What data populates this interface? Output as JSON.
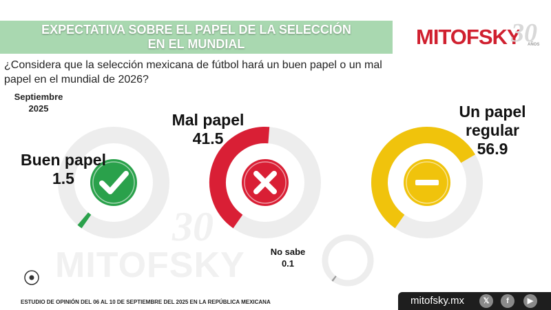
{
  "header": {
    "title_line1": "EXPECTATIVA SOBRE EL PAPEL DE LA SELECCIÓN",
    "title_line2": "EN EL MUNDIAL"
  },
  "logo": {
    "name": "MITOFSKY",
    "anniversary": "30",
    "anniversary_label": "AÑOS"
  },
  "question": "¿Considera que la selección mexicana de fútbol hará un buen papel o un mal papel en el mundial de 2026?",
  "date": {
    "month": "Septiembre",
    "year": "2025"
  },
  "chart_data": {
    "type": "pie",
    "categories": [
      "Buen papel",
      "Mal papel",
      "Un papel regular",
      "No sabe"
    ],
    "values": [
      1.5,
      41.5,
      56.9,
      0.1
    ],
    "value_labels": [
      "1.5",
      "41.5",
      "56.9",
      "0.1"
    ],
    "colors": {
      "buen": "#2aa14b",
      "mal": "#d91f35",
      "regular": "#f0c30c",
      "no_sabe": "#9a9a9a",
      "track": "#ededed"
    },
    "icons": [
      "check-icon",
      "x-icon",
      "minus-icon"
    ]
  },
  "labels": {
    "buen_line1": "Buen papel",
    "mal_line1": "Mal papel",
    "regular_line1": "Un papel",
    "regular_line2": "regular",
    "ns_line1": "No sabe"
  },
  "watermark": {
    "name": "MITOFSKY",
    "anniversary": "30",
    "anniversary_label": "AÑOS"
  },
  "footer": {
    "study_text": "ESTUDIO DE OPINIÓN DEL 06 AL 10 DE SEPTIEMBRE DEL 2025 EN LA REPÚBLICA MEXICANA",
    "site": "mitofsky.mx",
    "social": [
      "x-logo-icon",
      "facebook-icon",
      "youtube-icon"
    ]
  }
}
